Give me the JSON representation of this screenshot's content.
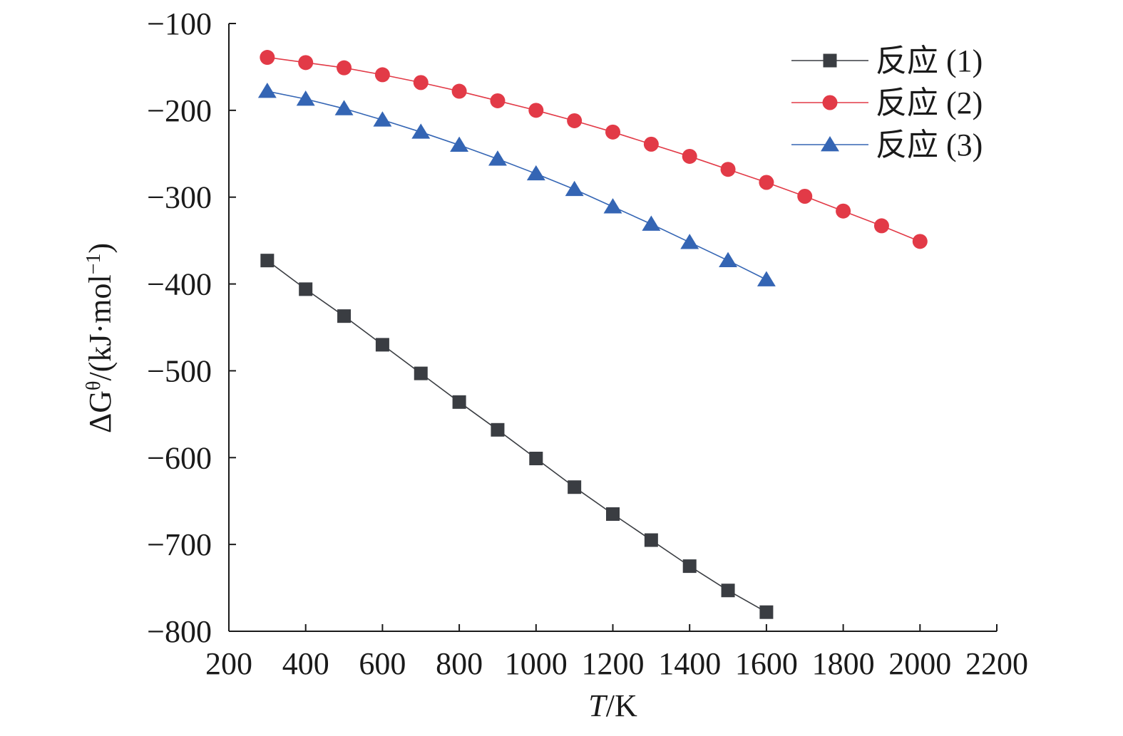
{
  "chart_data": {
    "type": "line",
    "xlabel": "T/K",
    "xlabel_italic": "T",
    "xlabel_rest": "/K",
    "ylabel": "ΔGθ/(kJ·mol−1)",
    "ylabel_main": "ΔG",
    "ylabel_sup": "θ",
    "ylabel_mid": "/(kJ·mol",
    "ylabel_sup2": "−1",
    "ylabel_end": ")",
    "xlim": [
      200,
      2200
    ],
    "ylim": [
      -800,
      -100
    ],
    "xticks": [
      "200",
      "400",
      "600",
      "800",
      "1000",
      "1200",
      "1400",
      "1600",
      "1800",
      "2000",
      "2200"
    ],
    "yticks": [
      "−100",
      "−200",
      "−300",
      "−400",
      "−500",
      "−600",
      "−700",
      "−800"
    ],
    "grid": false,
    "legend_position": "top-right",
    "series": [
      {
        "name": "反应 (1)",
        "color": "#3a3d42",
        "marker": "square",
        "x": [
          300,
          400,
          500,
          600,
          700,
          800,
          900,
          1000,
          1100,
          1200,
          1300,
          1400,
          1500,
          1600
        ],
        "y": [
          -373,
          -406,
          -437,
          -470,
          -503,
          -536,
          -568,
          -601,
          -634,
          -665,
          -695,
          -725,
          -753,
          -778
        ]
      },
      {
        "name": "反应 (2)",
        "color": "#e23a47",
        "marker": "circle",
        "x": [
          300,
          400,
          500,
          600,
          700,
          800,
          900,
          1000,
          1100,
          1200,
          1300,
          1400,
          1500,
          1600,
          1700,
          1800,
          1900,
          2000
        ],
        "y": [
          -139,
          -145,
          -151,
          -159,
          -168,
          -178,
          -189,
          -200,
          -212,
          -225,
          -239,
          -253,
          -268,
          -283,
          -299,
          -316,
          -333,
          -351
        ]
      },
      {
        "name": "反应 (3)",
        "color": "#3465b4",
        "marker": "triangle",
        "x": [
          300,
          400,
          500,
          600,
          700,
          800,
          900,
          1000,
          1100,
          1200,
          1300,
          1400,
          1500,
          1600
        ],
        "y": [
          -178,
          -187,
          -198,
          -211,
          -225,
          -240,
          -256,
          -273,
          -291,
          -311,
          -331,
          -352,
          -373,
          -395
        ]
      }
    ]
  }
}
